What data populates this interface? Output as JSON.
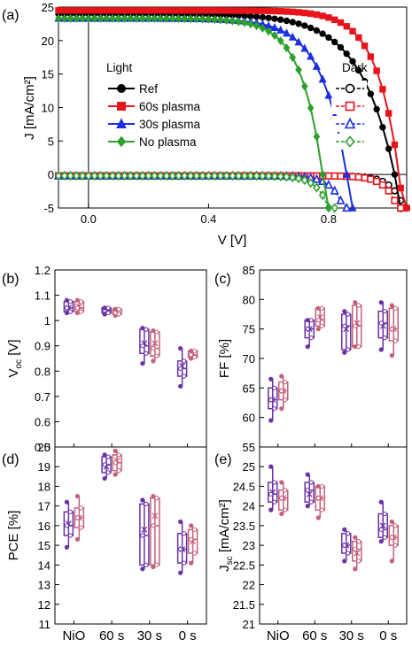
{
  "chart_data": [
    {
      "id": "a",
      "panel_label": "(a)",
      "type": "line",
      "xlabel": "V [V]",
      "ylabel": "J [mA/cm²]",
      "xlim": [
        -0.1,
        1.06
      ],
      "ylim": [
        -5,
        25
      ],
      "xticks": [
        0.0,
        0.4,
        0.8
      ],
      "xtick_labels": [
        "0.0",
        "0.4",
        "0.8"
      ],
      "yticks": [
        -5,
        0,
        5,
        10,
        15,
        20,
        25
      ],
      "ytick_labels": [
        "-5",
        "0",
        "5",
        "10",
        "15",
        "20",
        "25"
      ],
      "legend": {
        "light_title": "Light",
        "dark_title": "Dark",
        "placement": "left"
      },
      "series": [
        {
          "name": "Ref",
          "color": "#000000",
          "marker": "circle",
          "light": {
            "jsc": 24.0,
            "voc": 1.02,
            "n": 0.115,
            "rs": 0.035
          }
        },
        {
          "name": "60s plasma",
          "color": "#e8141b",
          "marker": "square",
          "light": {
            "jsc": 24.5,
            "voc": 1.035,
            "n": 0.075,
            "rs": 0.015
          }
        },
        {
          "name": "30s plasma",
          "color": "#1d2fe0",
          "marker": "triangle",
          "light": {
            "jsc": 23.3,
            "voc": 0.86,
            "n": 0.085,
            "rs": 0.02
          }
        },
        {
          "name": "No plasma",
          "color": "#2ca02c",
          "marker": "diamond",
          "light": {
            "jsc": 23.3,
            "voc": 0.78,
            "n": 0.072,
            "rs": 0.012
          }
        }
      ],
      "dark_onset_v": {
        "Ref": 0.96,
        "60s plasma": 0.94,
        "30s plasma": 0.76,
        "No plasma": 0.71
      }
    },
    {
      "id": "b",
      "panel_label": "(b)",
      "type": "box",
      "ylabel": "V_oc [V]",
      "ylim": [
        0.5,
        1.2
      ],
      "yticks": [
        0.5,
        0.6,
        0.7,
        0.8,
        0.9,
        1.0,
        1.1,
        1.2
      ],
      "ytick_labels": [
        "0.5",
        "0.6",
        "0.7",
        "0.8",
        "0.9",
        "1",
        "1.1",
        "1.2"
      ],
      "categories": [
        "NiO",
        "60 s",
        "30 s",
        "0 s"
      ],
      "boxes": [
        [
          {
            "q1": 1.035,
            "med": 1.05,
            "q3": 1.075,
            "mean": 1.05,
            "lo": 1.03,
            "hi": 1.08
          },
          {
            "q1": 1.035,
            "med": 1.05,
            "q3": 1.075,
            "mean": 1.055,
            "lo": 1.03,
            "hi": 1.08
          }
        ],
        [
          {
            "q1": 1.03,
            "med": 1.04,
            "q3": 1.05,
            "mean": 1.04,
            "lo": 1.025,
            "hi": 1.05
          },
          {
            "q1": 1.025,
            "med": 1.03,
            "q3": 1.045,
            "mean": 1.035,
            "lo": 1.02,
            "hi": 1.045
          }
        ],
        [
          {
            "q1": 0.87,
            "med": 0.9,
            "q3": 0.965,
            "mean": 0.91,
            "lo": 0.83,
            "hi": 0.97
          },
          {
            "q1": 0.86,
            "med": 0.89,
            "q3": 0.955,
            "mean": 0.91,
            "lo": 0.84,
            "hi": 0.96
          }
        ],
        [
          {
            "q1": 0.78,
            "med": 0.81,
            "q3": 0.84,
            "mean": 0.82,
            "lo": 0.74,
            "hi": 0.89
          },
          {
            "q1": 0.855,
            "med": 0.865,
            "q3": 0.88,
            "mean": 0.87,
            "lo": 0.85,
            "hi": 0.88
          }
        ]
      ]
    },
    {
      "id": "c",
      "panel_label": "(c)",
      "type": "box",
      "ylabel": "FF [%]",
      "ylim": [
        55,
        85
      ],
      "yticks": [
        55,
        60,
        65,
        70,
        75,
        80,
        85
      ],
      "ytick_labels": [
        "55",
        "60",
        "65",
        "70",
        "75",
        "80",
        "85"
      ],
      "categories": [
        "NiO",
        "60 s",
        "30 s",
        "0 s"
      ],
      "boxes": [
        [
          {
            "q1": 61.5,
            "med": 63,
            "q3": 65,
            "mean": 63,
            "lo": 59.5,
            "hi": 66.5
          },
          {
            "q1": 63,
            "med": 64.5,
            "q3": 66,
            "mean": 64.5,
            "lo": 61.5,
            "hi": 67
          }
        ],
        [
          {
            "q1": 73.5,
            "med": 75,
            "q3": 76.5,
            "mean": 75,
            "lo": 72,
            "hi": 76.5
          },
          {
            "q1": 75.5,
            "med": 76.5,
            "q3": 78.5,
            "mean": 77,
            "lo": 75,
            "hi": 78.5
          }
        ],
        [
          {
            "q1": 71.5,
            "med": 75.5,
            "q3": 77.5,
            "mean": 75,
            "lo": 71,
            "hi": 78
          },
          {
            "q1": 72,
            "med": 75.5,
            "q3": 79,
            "mean": 76,
            "lo": 72,
            "hi": 79.5
          }
        ],
        [
          {
            "q1": 73.5,
            "med": 76,
            "q3": 78,
            "mean": 75.5,
            "lo": 71.5,
            "hi": 79.5
          },
          {
            "q1": 73,
            "med": 75,
            "q3": 78.5,
            "mean": 75,
            "lo": 70.5,
            "hi": 79
          }
        ]
      ]
    },
    {
      "id": "d",
      "panel_label": "(d)",
      "type": "box",
      "ylabel": "PCE [%]",
      "ylim": [
        11,
        20
      ],
      "yticks": [
        11,
        12,
        13,
        14,
        15,
        16,
        17,
        18,
        19,
        20
      ],
      "ytick_labels": [
        "11",
        "12",
        "13",
        "14",
        "15",
        "16",
        "17",
        "18",
        "19",
        "20"
      ],
      "categories": [
        "NiO",
        "60 s",
        "30 s",
        "0 s"
      ],
      "boxes": [
        [
          {
            "q1": 15.5,
            "med": 16,
            "q3": 16.7,
            "mean": 16.1,
            "lo": 14.9,
            "hi": 17.2
          },
          {
            "q1": 15.9,
            "med": 16.4,
            "q3": 16.9,
            "mean": 16.4,
            "lo": 15.3,
            "hi": 17.5
          }
        ],
        [
          {
            "q1": 18.7,
            "med": 19.1,
            "q3": 19.5,
            "mean": 19.0,
            "lo": 18.4,
            "hi": 19.6
          },
          {
            "q1": 18.8,
            "med": 19.2,
            "q3": 19.6,
            "mean": 19.3,
            "lo": 18.6,
            "hi": 19.8
          }
        ],
        [
          {
            "q1": 14,
            "med": 15.5,
            "q3": 17.1,
            "mean": 15.8,
            "lo": 13.8,
            "hi": 17.3
          },
          {
            "q1": 14,
            "med": 16,
            "q3": 17.4,
            "mean": 16.5,
            "lo": 13.9,
            "hi": 17.5
          }
        ],
        [
          {
            "q1": 14.1,
            "med": 14.8,
            "q3": 15.6,
            "mean": 14.8,
            "lo": 13.6,
            "hi": 16.2
          },
          {
            "q1": 14.6,
            "med": 15.3,
            "q3": 15.8,
            "mean": 15.2,
            "lo": 14.1,
            "hi": 16
          }
        ]
      ]
    },
    {
      "id": "e",
      "panel_label": "(e)",
      "type": "box",
      "ylabel": "J_sc [mA/cm²]",
      "ylim": [
        21,
        25.5
      ],
      "yticks": [
        21,
        21.5,
        22,
        22.5,
        23,
        23.5,
        24,
        24.5,
        25
      ],
      "ytick_labels": [
        "21",
        "21.5",
        "22",
        "22.5",
        "23",
        "23.5",
        "24",
        "24.5",
        "25"
      ],
      "categories": [
        "NiO",
        "60 s",
        "30 s",
        "0 s"
      ],
      "boxes": [
        [
          {
            "q1": 24.1,
            "med": 24.3,
            "q3": 24.6,
            "mean": 24.35,
            "lo": 23.9,
            "hi": 25.0
          },
          {
            "q1": 23.9,
            "med": 24.2,
            "q3": 24.4,
            "mean": 24.2,
            "lo": 23.8,
            "hi": 24.6
          }
        ],
        [
          {
            "q1": 24.1,
            "med": 24.4,
            "q3": 24.6,
            "mean": 24.3,
            "lo": 24.0,
            "hi": 24.8
          },
          {
            "q1": 23.9,
            "med": 24.2,
            "q3": 24.5,
            "mean": 24.2,
            "lo": 23.7,
            "hi": 24.5
          }
        ],
        [
          {
            "q1": 22.8,
            "med": 23.0,
            "q3": 23.3,
            "mean": 23.0,
            "lo": 22.6,
            "hi": 23.4
          },
          {
            "q1": 22.6,
            "med": 22.9,
            "q3": 23.1,
            "mean": 22.8,
            "lo": 22.4,
            "hi": 23.2
          }
        ],
        [
          {
            "q1": 23.2,
            "med": 23.4,
            "q3": 23.8,
            "mean": 23.5,
            "lo": 23.1,
            "hi": 24.1
          },
          {
            "q1": 23.0,
            "med": 23.2,
            "q3": 23.5,
            "mean": 23.2,
            "lo": 22.6,
            "hi": 23.6
          }
        ]
      ]
    }
  ],
  "box_colors": [
    "#6a32a6",
    "#c4607a"
  ],
  "box_xtick_labels": [
    "NiO",
    "60 s",
    "30 s",
    "0 s"
  ]
}
